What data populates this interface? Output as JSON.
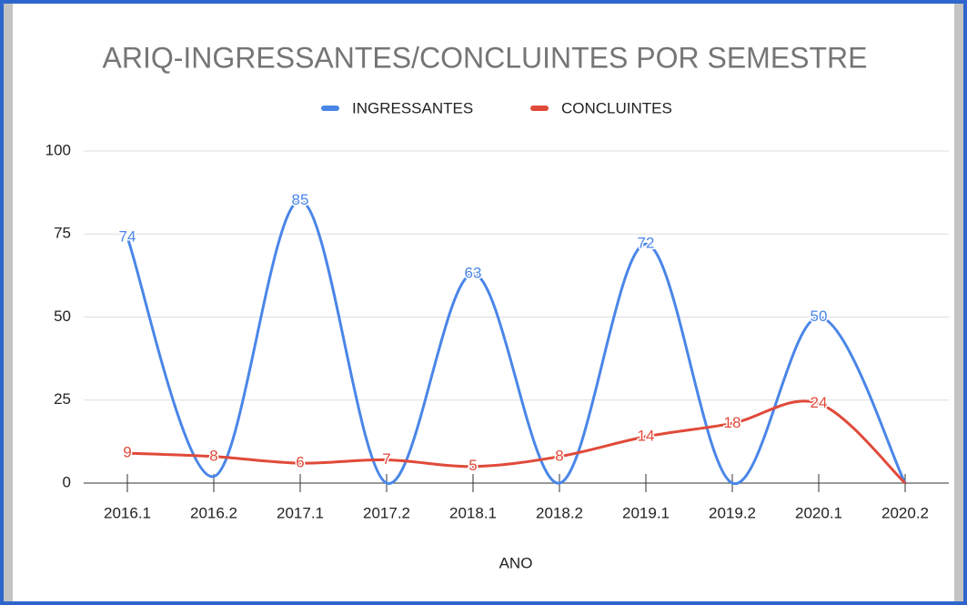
{
  "chart_data": {
    "type": "line",
    "title": "ARIQ-INGRESSANTES/CONCLUINTES POR SEMESTRE",
    "x_label": "ANO",
    "categories": [
      "2016.1",
      "2016.2",
      "2017.1",
      "2017.2",
      "2018.1",
      "2018.2",
      "2019.1",
      "2019.2",
      "2020.1",
      "2020.2"
    ],
    "series": [
      {
        "name": "INGRESSANTES",
        "color": "#4a86e8",
        "values": [
          74,
          2,
          85,
          0,
          63,
          0,
          72,
          0,
          50,
          0
        ],
        "value_labels": [
          "74",
          null,
          "85",
          null,
          "63",
          null,
          "72",
          null,
          "50",
          null
        ]
      },
      {
        "name": "CONCLUINTES",
        "color": "#e04a3a",
        "values": [
          9,
          8,
          6,
          7,
          5,
          8,
          14,
          18,
          24,
          0
        ],
        "value_labels": [
          "9",
          "8",
          "6",
          "7",
          "5",
          "8",
          "14",
          "18",
          "24",
          null
        ]
      }
    ],
    "ylim": [
      0,
      100
    ],
    "yticks": [
      0,
      25,
      50,
      75,
      100
    ],
    "grid": true,
    "legend": "top",
    "smooth": true
  }
}
